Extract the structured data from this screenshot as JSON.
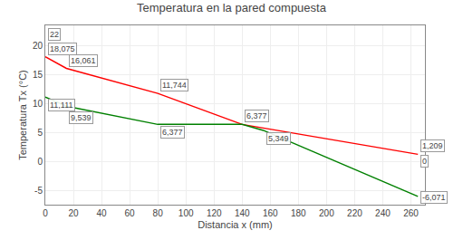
{
  "chart_data": {
    "type": "line",
    "title": "Temperatura en la pared compuesta",
    "xlabel": "Distancia x (mm)",
    "ylabel": "Temperatura Tx (°C)",
    "xlim": [
      0,
      270
    ],
    "ylim": [
      -7.5,
      23.5
    ],
    "xticks": [
      0,
      20,
      40,
      60,
      80,
      100,
      120,
      140,
      160,
      180,
      200,
      220,
      240,
      260
    ],
    "yticks": [
      -5,
      0,
      5,
      10,
      15,
      20
    ],
    "grid": true,
    "series": [
      {
        "color": "red",
        "x": [
          0,
          15,
          80,
          140,
          265
        ],
        "values": [
          18.075,
          16.061,
          11.744,
          6.377,
          1.209
        ]
      },
      {
        "color": "green",
        "x": [
          0,
          15,
          80,
          140,
          155,
          265
        ],
        "values": [
          11.111,
          9.539,
          6.377,
          6.377,
          5.349,
          -6.071
        ]
      }
    ],
    "annotations": [
      {
        "x": 0,
        "y": 22,
        "text": "22"
      },
      {
        "x": 0,
        "y": 18.075,
        "text": "18,075"
      },
      {
        "x": 15,
        "y": 16.061,
        "text": "16,061"
      },
      {
        "x": 80,
        "y": 11.744,
        "text": "11,744"
      },
      {
        "x": 80,
        "y": 6.377,
        "text": "6,377"
      },
      {
        "x": 140,
        "y": 6.377,
        "text": "6,377"
      },
      {
        "x": 155,
        "y": 5.349,
        "text": "5,349"
      },
      {
        "x": 0,
        "y": 11.111,
        "text": "11,111"
      },
      {
        "x": 15,
        "y": 9.539,
        "text": "9,539"
      },
      {
        "x": 265,
        "y": 1.209,
        "text": "1,209"
      },
      {
        "x": 265,
        "y": 0,
        "text": "0"
      },
      {
        "x": 265,
        "y": -6.071,
        "text": "-6,071"
      }
    ]
  }
}
